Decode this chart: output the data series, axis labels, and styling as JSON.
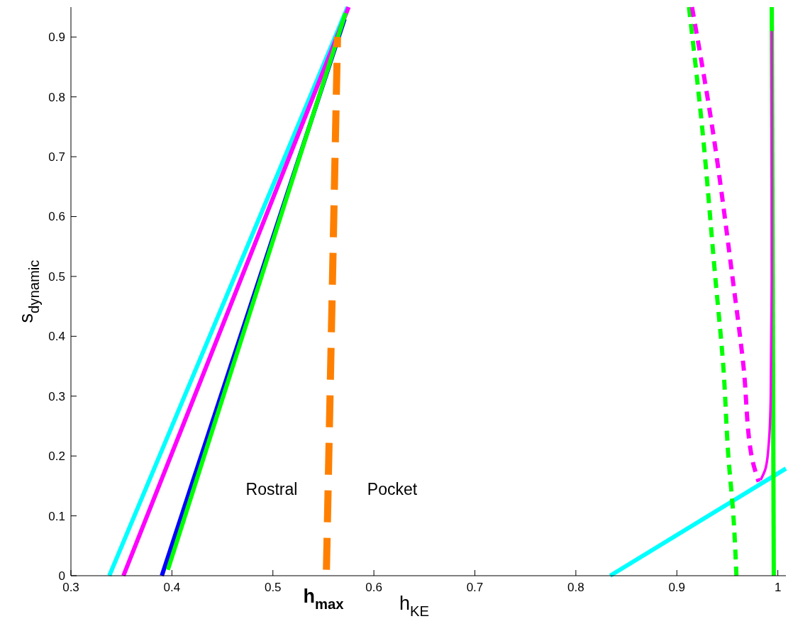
{
  "chart_data": {
    "type": "line",
    "xlabel": "h$_{KE}$",
    "ylabel": "s$_{dynamic}$",
    "xlim": [
      0.3,
      1.008
    ],
    "ylim": [
      0,
      0.95
    ],
    "xticks": [
      0.3,
      0.4,
      0.5,
      0.6,
      0.7,
      0.8,
      0.9,
      {
        "value": 1.0,
        "label": "1"
      }
    ],
    "yticks": [
      0,
      0.1,
      0.2,
      0.3,
      0.4,
      0.5,
      0.6,
      0.7,
      0.8,
      0.9
    ],
    "grid": false,
    "marker": "none",
    "series": [
      {
        "color": "#00ffff",
        "x": [
          0.338,
          0.574
        ],
        "values": [
          0,
          0.95
        ]
      },
      {
        "color": "#ff00ff",
        "x": [
          0.352,
          0.575
        ],
        "values": [
          0,
          0.95
        ]
      },
      {
        "color": "#0000ff",
        "x": [
          0.39,
          0.571
        ],
        "values": [
          0,
          0.93
        ]
      },
      {
        "color": "#00ff00",
        "x": [
          0.396,
          0.572
        ],
        "values": [
          0.01,
          0.94
        ]
      },
      {
        "color": "#ff8000",
        "line_style": "dashed",
        "x": [
          0.553,
          0.564
        ],
        "values": [
          0.01,
          0.9
        ]
      },
      {
        "color": "#00ffff",
        "x": [
          0.834,
          1.008
        ],
        "values": [
          0,
          0.179
        ]
      },
      {
        "color": "#00ff00",
        "line_style": "dashed",
        "x": [
          0.912,
          0.925,
          0.938,
          0.946,
          0.951,
          0.956,
          0.959
        ],
        "values": [
          0.95,
          0.75,
          0.5,
          0.35,
          0.2,
          0.1,
          0
        ]
      },
      {
        "color": "#ff00ff",
        "line_style": "dashed",
        "x": [
          0.915,
          0.935,
          0.955,
          0.966,
          0.974,
          0.981
        ],
        "values": [
          0.95,
          0.75,
          0.5,
          0.35,
          0.2,
          0.157
        ]
      },
      {
        "color": "#00ff00",
        "x": [
          0.996,
          0.994
        ],
        "values": [
          0,
          0.95
        ]
      },
      {
        "color": "#ff00ff",
        "x": [
          0.983,
          0.988,
          0.991,
          0.993,
          0.994,
          0.994
        ],
        "values": [
          0.16,
          0.18,
          0.22,
          0.3,
          0.5,
          0.91
        ]
      }
    ],
    "annotations": [
      "Rostral",
      "Pocket",
      "h$_{max}$"
    ]
  }
}
